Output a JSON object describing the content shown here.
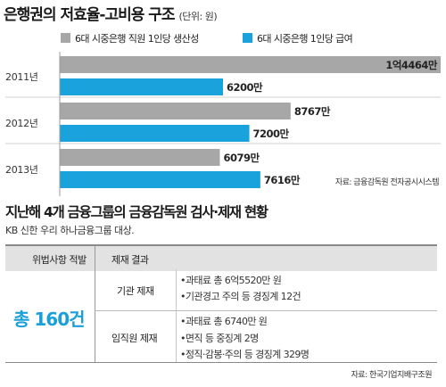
{
  "chart_title": "은행권의 저효율-고비용 구조",
  "chart_unit": "(단위: 원)",
  "chart_data": {
    "type": "bar",
    "orientation": "horizontal",
    "categories": [
      "2011년",
      "2012년",
      "2013년"
    ],
    "series": [
      {
        "name": "6대 시중은행 직원 1인당 생산성",
        "color": "#a7a7a7",
        "values": [
          144640000,
          87670000,
          60790000
        ],
        "labels": [
          "1억4464만",
          "8767만",
          "6079만"
        ]
      },
      {
        "name": "6대 시중은행 1인당 급여",
        "color": "#19a2dc",
        "values": [
          62000000,
          72000000,
          76160000
        ],
        "labels": [
          "6200만",
          "7200만",
          "7616만"
        ]
      }
    ],
    "xlim": [
      0,
      144640000
    ],
    "legend": "top"
  },
  "chart_source": "자료: 금융감독원 전자공시시스템",
  "table_title": "지난해 4개 금융그룹의 금융감독원 검사·제재 현황",
  "table_subtitle": "KB 신한 우리 하나금융그룹 대상.",
  "table": {
    "headers": [
      "위법사항 적발",
      "제재 결과"
    ],
    "total": "총 160건",
    "groups": [
      {
        "category": "기관 제재",
        "items": [
          "•과태료 총 6억5520만 원",
          "•기관경고 주의 등 경징계 12건"
        ]
      },
      {
        "category": "임직원 제재",
        "items": [
          "•과태료 총 6740만 원",
          "•면직 등 중징계 2명",
          "•정직·감봉·주의 등 경징계 329명"
        ]
      }
    ]
  },
  "table_source": "자료: 한국기업지배구조원"
}
